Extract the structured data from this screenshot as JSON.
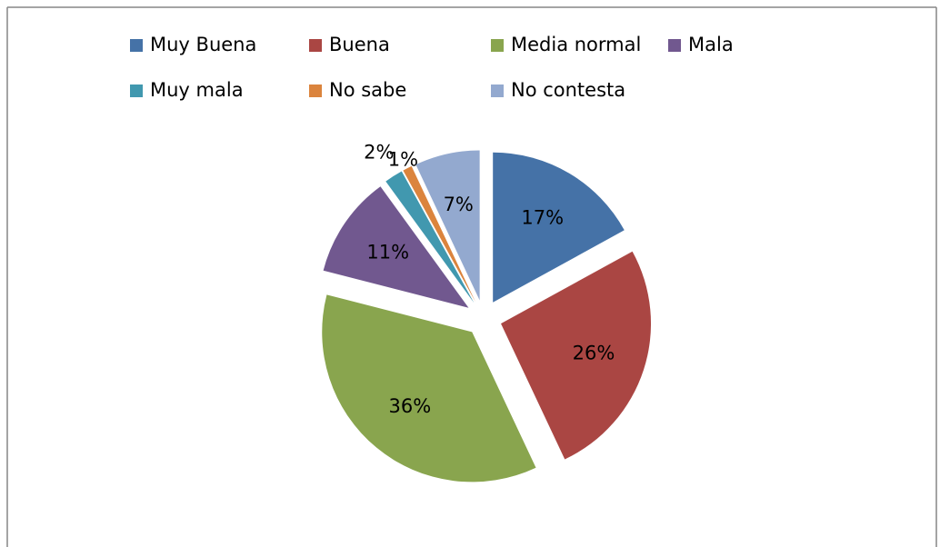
{
  "chart_data": {
    "type": "pie",
    "categories": [
      "Muy Buena",
      "Buena",
      "Media normal",
      "Mala",
      "Muy mala",
      "No sabe",
      "No contesta"
    ],
    "values": [
      17,
      26,
      36,
      11,
      2,
      1,
      7
    ],
    "value_labels": [
      "17%",
      "26%",
      "36%",
      "11%",
      "2%",
      "1%",
      "7%"
    ],
    "colors": [
      "#4572a7",
      "#aa4643",
      "#89a54e",
      "#71588f",
      "#4198af",
      "#db843d",
      "#93a9cf"
    ],
    "exploded": true,
    "legend": "top"
  }
}
